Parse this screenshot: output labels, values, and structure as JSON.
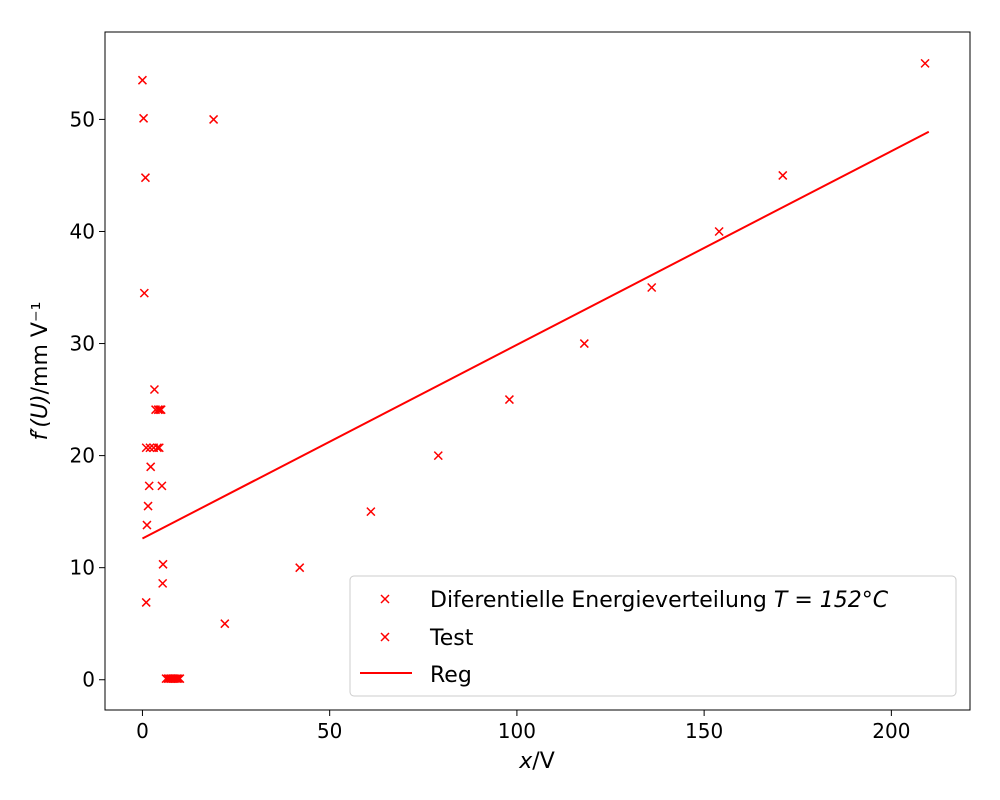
{
  "chart_data": {
    "type": "scatter",
    "xlabel": {
      "var": "x",
      "unit": "/V"
    },
    "ylabel": {
      "var": "f′(U)",
      "unit": "/mm V⁻¹"
    },
    "xlim": [
      -10,
      221
    ],
    "ylim": [
      -2.7,
      57.8
    ],
    "xticks": [
      0,
      50,
      100,
      150,
      200
    ],
    "yticks": [
      0,
      10,
      20,
      30,
      40,
      50
    ],
    "grid": false,
    "legend_position": "lower-right",
    "series": [
      {
        "name": "Diferentielle Energieverteilung T = 152°C",
        "name_plain": "Diferentielle Energieverteilung ",
        "name_math": "T = 152°C",
        "kind": "scatter",
        "marker": "x",
        "color": "#ff0000",
        "x": [
          209,
          171,
          154,
          136,
          118,
          98,
          79,
          61,
          42,
          22,
          19,
          0,
          0.3,
          0.8,
          0.5
        ],
        "y": [
          55.0,
          45.0,
          40.0,
          35.0,
          30.0,
          25.0,
          20.0,
          15.0,
          10.0,
          5.0,
          50.0,
          53.5,
          50.1,
          44.8,
          34.5
        ]
      },
      {
        "name": "Test",
        "kind": "scatter",
        "marker": "x",
        "color": "#ff0000",
        "x": [
          3.2,
          3.5,
          4.2,
          4.6,
          5.0,
          1.0,
          2.0,
          3.0,
          4.0,
          4.5,
          2.2,
          5.2,
          1.8,
          1.5,
          1.2,
          1.0,
          5.5,
          5.4,
          6.3,
          6.8,
          7.2,
          7.6,
          8.0,
          8.4,
          8.8,
          9.2,
          9.6,
          10.0
        ],
        "y": [
          25.9,
          24.1,
          24.1,
          24.1,
          24.1,
          20.7,
          20.7,
          20.7,
          20.7,
          20.7,
          19.0,
          17.3,
          17.3,
          15.5,
          13.8,
          6.9,
          10.3,
          8.6,
          0.1,
          0.1,
          0.1,
          0.1,
          0.1,
          0.1,
          0.1,
          0.1,
          0.1,
          0.1
        ]
      },
      {
        "name": "Reg",
        "kind": "line",
        "color": "#ff0000",
        "x": [
          0,
          210
        ],
        "y": [
          12.6,
          48.9
        ]
      }
    ]
  }
}
